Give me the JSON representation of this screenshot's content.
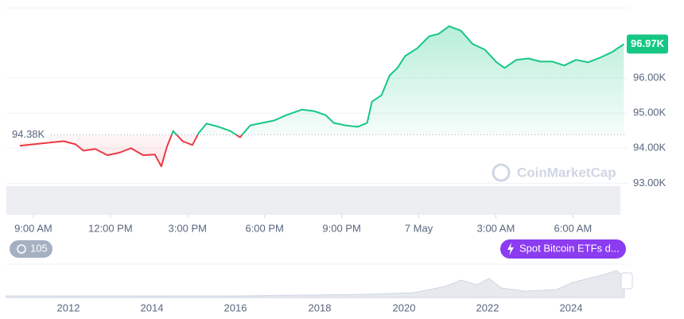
{
  "chart_data": {
    "type": "line",
    "x": [
      -0.53,
      0.62,
      1.18,
      1.64,
      1.95,
      2.41,
      2.88,
      3.34,
      3.8,
      4.27,
      4.73,
      4.98,
      5.2,
      5.44,
      5.81,
      6.19,
      6.43,
      6.74,
      7.21,
      7.67,
      8.04,
      8.44,
      8.91,
      9.37,
      9.84,
      10.45,
      10.92,
      11.38,
      11.69,
      12.15,
      12.62,
      12.99,
      13.18,
      13.55,
      13.86,
      14.17,
      14.47,
      14.94,
      15.4,
      15.77,
      16.18,
      16.64,
      17.1,
      17.57,
      18.03,
      18.34,
      18.8,
      19.27,
      19.73,
      20.2,
      20.66,
      21.12,
      21.59,
      22.05,
      22.52,
      22.98
    ],
    "values": [
      94070,
      94160,
      94200,
      94110,
      93930,
      93980,
      93800,
      93870,
      94000,
      93800,
      93820,
      93480,
      94040,
      94490,
      94200,
      94090,
      94430,
      94700,
      94610,
      94490,
      94310,
      94650,
      94720,
      94790,
      94940,
      95100,
      95060,
      94940,
      94720,
      94650,
      94610,
      94720,
      95330,
      95510,
      96070,
      96290,
      96630,
      96850,
      97190,
      97260,
      97480,
      97350,
      96970,
      96810,
      96450,
      96290,
      96520,
      96560,
      96470,
      96470,
      96360,
      96520,
      96450,
      96580,
      96740,
      96970
    ],
    "xlim": [
      -1.05,
      23
    ],
    "xticks": [
      {
        "value": 0,
        "label": "9:00 AM"
      },
      {
        "value": 3,
        "label": "12:00 PM"
      },
      {
        "value": 6,
        "label": "3:00 PM"
      },
      {
        "value": 9,
        "label": "6:00 PM"
      },
      {
        "value": 12,
        "label": "9:00 PM"
      },
      {
        "value": 15,
        "label": "7 May"
      },
      {
        "value": 18,
        "label": "3:00 AM"
      },
      {
        "value": 21,
        "label": "6:00 AM"
      }
    ],
    "ylim": [
      92100,
      98000
    ],
    "yticks": [
      {
        "value": 93000,
        "label": "93.00K"
      },
      {
        "value": 94000,
        "label": "94.00K"
      },
      {
        "value": 95000,
        "label": "95.00K"
      },
      {
        "value": 96000,
        "label": "96.00K"
      }
    ],
    "grid": true,
    "color_up": "#16c784",
    "color_down": "#ea3943",
    "baseline": {
      "value": 94380,
      "label": "94.38K"
    },
    "last_price": {
      "value": 96970,
      "label": "96.97K"
    }
  },
  "watermark": "CoinMarketCap",
  "badges": {
    "events": "105",
    "news": "Spot Bitcoin ETFs d..."
  },
  "navigator": {
    "years": [
      "2012",
      "2014",
      "2016",
      "2018",
      "2020",
      "2022",
      "2024"
    ]
  }
}
